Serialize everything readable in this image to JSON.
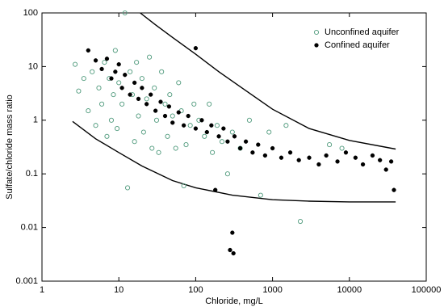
{
  "chart_data": {
    "type": "scatter",
    "xlabel": "Chloride, mg/L",
    "ylabel": "Sulfate/chloride mass ratio",
    "log_x": true,
    "log_y": true,
    "legend": "upper right",
    "xlim": [
      1,
      100000
    ],
    "ylim": [
      0.001,
      100
    ],
    "xticks": [
      1,
      10,
      100,
      1000,
      10000,
      100000
    ],
    "yticks": [
      0.001,
      0.01,
      0.1,
      1,
      10,
      100
    ],
    "series": [
      {
        "name": "Unconfined aquifer",
        "color": "#4f9a7c",
        "marker": "open",
        "x": [
          2.7,
          3,
          3.5,
          4,
          4.5,
          5,
          5.5,
          6,
          6.5,
          7,
          7.5,
          8,
          8.5,
          9,
          9.5,
          10,
          11,
          12,
          13,
          14,
          15,
          16,
          17,
          18,
          20,
          21,
          23,
          25,
          27,
          29,
          31,
          33,
          36,
          40,
          43,
          46,
          50,
          55,
          60,
          65,
          70,
          75,
          85,
          95,
          110,
          130,
          150,
          165,
          190,
          220,
          260,
          300,
          380,
          500,
          700,
          900,
          1500,
          2300,
          5500,
          8000
        ],
        "y": [
          11,
          3.5,
          6,
          1.5,
          8,
          0.8,
          4,
          2,
          12,
          0.5,
          6,
          1,
          3,
          20,
          0.7,
          5,
          2,
          100,
          0.055,
          8,
          3,
          0.4,
          12,
          1.2,
          6,
          0.6,
          2.5,
          15,
          0.3,
          4,
          1,
          0.25,
          8,
          2,
          0.5,
          3,
          1.2,
          0.3,
          5,
          1.5,
          0.06,
          0.35,
          0.8,
          2,
          1,
          0.5,
          2,
          0.25,
          0.8,
          0.4,
          0.1,
          0.6,
          0.3,
          1,
          0.04,
          0.6,
          0.8,
          0.013,
          0.35,
          0.3
        ]
      },
      {
        "name": "Confined aquifer",
        "color": "#000000",
        "marker": "filled",
        "x": [
          4,
          5,
          6,
          7,
          8,
          9,
          10,
          11,
          12,
          14,
          16,
          18,
          20,
          23,
          26,
          30,
          35,
          40,
          45,
          50,
          60,
          70,
          80,
          100,
          100,
          120,
          140,
          160,
          180,
          200,
          230,
          260,
          280,
          300,
          310,
          320,
          380,
          450,
          550,
          650,
          800,
          1000,
          1300,
          1700,
          2200,
          3000,
          4000,
          5000,
          7000,
          9000,
          12000,
          15000,
          20000,
          25000,
          30000,
          35000,
          38000
        ],
        "y": [
          20,
          13,
          9,
          14,
          6,
          8,
          11,
          4,
          7,
          3,
          5,
          2.5,
          4,
          2,
          3,
          1.5,
          2.2,
          1.2,
          1.8,
          0.9,
          1.4,
          0.8,
          1.2,
          22,
          0.7,
          1,
          0.6,
          0.8,
          0.05,
          0.5,
          0.7,
          0.4,
          0.0038,
          0.008,
          0.0033,
          0.5,
          0.3,
          0.4,
          0.25,
          0.35,
          0.22,
          0.3,
          0.2,
          0.25,
          0.18,
          0.2,
          0.15,
          0.22,
          0.17,
          0.25,
          0.2,
          0.15,
          0.22,
          0.18,
          0.12,
          0.17,
          0.05
        ]
      }
    ],
    "curves": [
      {
        "color": "#000000",
        "x": [
          19,
          30,
          50,
          100,
          200,
          400,
          1000,
          3000,
          10000,
          40000
        ],
        "y": [
          100,
          60,
          35,
          17,
          8,
          4,
          1.6,
          0.7,
          0.42,
          0.29
        ]
      },
      {
        "color": "#000000",
        "x": [
          2.5,
          5,
          10,
          20,
          50,
          100,
          300,
          1000,
          3000,
          10000,
          40000
        ],
        "y": [
          0.95,
          0.45,
          0.25,
          0.14,
          0.075,
          0.055,
          0.04,
          0.033,
          0.031,
          0.03,
          0.03
        ]
      }
    ]
  }
}
